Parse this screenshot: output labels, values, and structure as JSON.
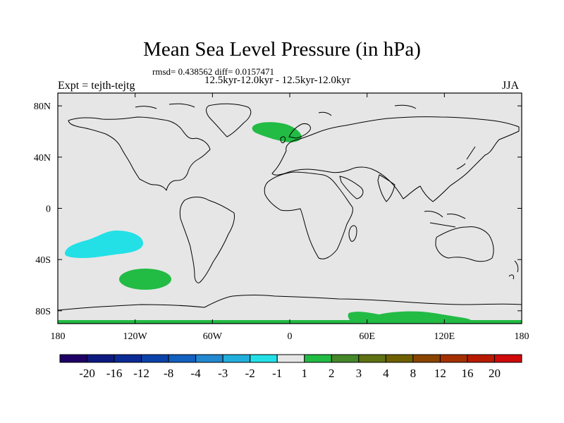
{
  "title": "Mean Sea Level Pressure (in hPa)",
  "stats_line": "rmsd= 0.438562 diff= 0.0157471",
  "period_line": "12.5kyr-12.0kyr - 12.5kyr-12.0kyr",
  "experiment_label": "Expt = tejth-tejtg",
  "season_label": "JJA",
  "lat_ticks": [
    {
      "value": 80,
      "label": "80N"
    },
    {
      "value": 40,
      "label": "40N"
    },
    {
      "value": 0,
      "label": "0"
    },
    {
      "value": -40,
      "label": "40S"
    },
    {
      "value": -80,
      "label": "80S"
    }
  ],
  "lon_ticks": [
    {
      "value": -180,
      "label": "180"
    },
    {
      "value": -120,
      "label": "120W"
    },
    {
      "value": -60,
      "label": "60W"
    },
    {
      "value": 0,
      "label": "0"
    },
    {
      "value": 60,
      "label": "60E"
    },
    {
      "value": 120,
      "label": "120E"
    },
    {
      "value": 180,
      "label": "180"
    }
  ],
  "colorbar": {
    "colors": [
      "#1e0066",
      "#0c1a80",
      "#0a2a96",
      "#0a42aa",
      "#1260c0",
      "#2288d0",
      "#22aedc",
      "#22e0e6",
      "#e6e6e6",
      "#22bb44",
      "#44882a",
      "#5e7214",
      "#6e6000",
      "#8a4400",
      "#a43000",
      "#b81a00",
      "#d00a0a"
    ],
    "labels": [
      "-20",
      "-16",
      "-12",
      "-8",
      "-4",
      "-3",
      "-2",
      "-1",
      "1",
      "2",
      "3",
      "4",
      "8",
      "12",
      "16",
      "20"
    ]
  },
  "chart_data": {
    "type": "map",
    "title": "Mean Sea Level Pressure (in hPa)",
    "projection": "cylindrical equidistant",
    "lon_range": [
      -180,
      180
    ],
    "lat_range": [
      -90,
      90
    ],
    "background_level": "-1 to 1",
    "anomaly_regions": [
      {
        "name": "north-atlantic-positive",
        "level": "1 to 2",
        "color": "#22bb44",
        "approx_center": {
          "lon": -5,
          "lat": 63
        }
      },
      {
        "name": "south-pacific-negative",
        "level": "-2 to -1",
        "color": "#22e0e6",
        "approx_center": {
          "lon": -150,
          "lat": -30
        }
      },
      {
        "name": "southeast-pacific-positive",
        "level": "1 to 2",
        "color": "#22bb44",
        "approx_center": {
          "lon": -112,
          "lat": -55
        }
      },
      {
        "name": "antarctic-coast-positive",
        "level": "1 to 2",
        "color": "#22bb44",
        "approx_center": {
          "lon": 85,
          "lat": -85
        }
      },
      {
        "name": "south-pole-positive",
        "level": "1 to 2",
        "color": "#22bb44",
        "approx_center": {
          "lon": 0,
          "lat": -90
        }
      }
    ]
  }
}
